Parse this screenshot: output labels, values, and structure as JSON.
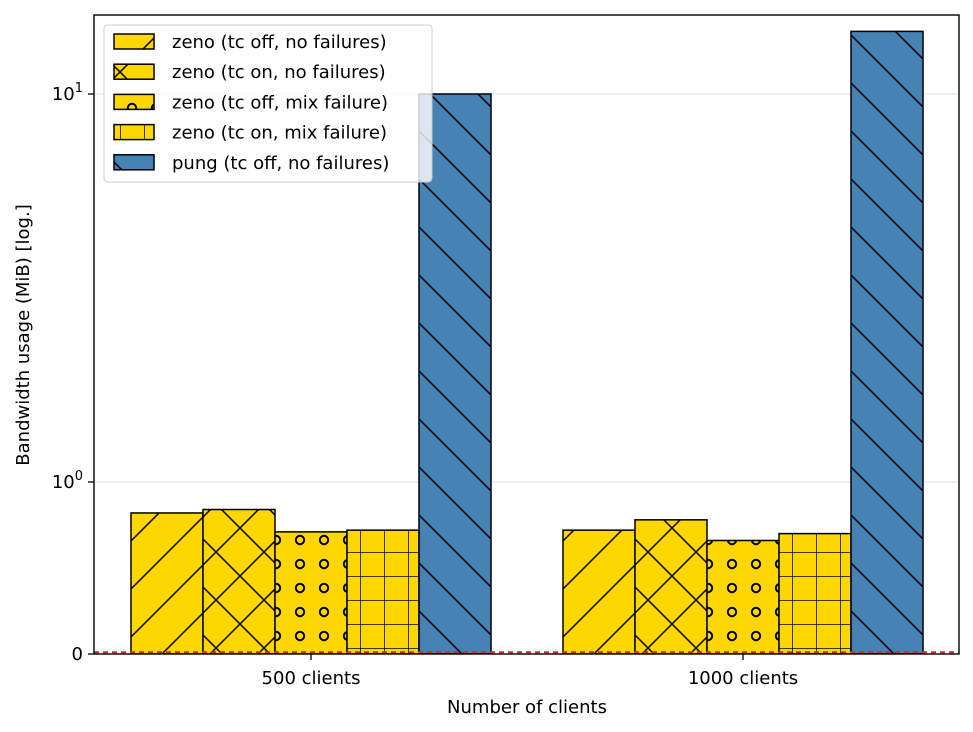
{
  "chart_data": {
    "type": "bar",
    "categories": [
      "500 clients",
      "1000 clients"
    ],
    "series": [
      {
        "name": "zeno (tc off, no failures)",
        "values": [
          0.82,
          0.72
        ],
        "color": "#ffd700",
        "hatch": "forward-diagonal"
      },
      {
        "name": "zeno (tc on, no failures)",
        "values": [
          0.84,
          0.78
        ],
        "color": "#ffd700",
        "hatch": "cross-diagonal"
      },
      {
        "name": "zeno (tc off, mix failure)",
        "values": [
          0.71,
          0.66
        ],
        "color": "#ffd700",
        "hatch": "circles"
      },
      {
        "name": "zeno (tc on, mix failure)",
        "values": [
          0.72,
          0.7
        ],
        "color": "#ffd700",
        "hatch": "grid"
      },
      {
        "name": "pung (tc off, no failures)",
        "values": [
          10.0,
          14.5
        ],
        "color": "#4682b4",
        "hatch": "back-diagonal"
      }
    ],
    "xlabel": "Number of clients",
    "ylabel": "Bandwidth usage (MiB) [log.]",
    "yscale": "symlog",
    "ylim": [
      0,
      16
    ],
    "yticks": [
      {
        "value": 0,
        "base": "0",
        "exp": ""
      },
      {
        "value": 1,
        "base": "10",
        "exp": "0"
      },
      {
        "value": 10,
        "base": "10",
        "exp": "1"
      }
    ],
    "reference_line": {
      "value": 0.01,
      "color": "#d62728",
      "style": "dashed"
    },
    "grid": "horizontal",
    "legend_position": "top-left"
  }
}
